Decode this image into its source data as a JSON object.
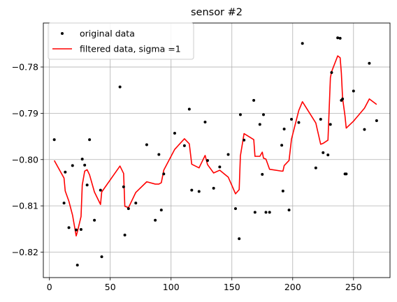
{
  "chart_data": {
    "type": "line",
    "title": "sensor #2",
    "xlabel": "",
    "ylabel": "",
    "xlim": [
      -5,
      280
    ],
    "ylim": [
      -0.8255,
      -0.7705
    ],
    "x_ticks": [
      0,
      50,
      100,
      150,
      200,
      250
    ],
    "y_ticks": [
      -0.82,
      -0.81,
      -0.8,
      -0.79,
      -0.78
    ],
    "x_tick_labels": [
      "0",
      "50",
      "100",
      "150",
      "200",
      "250"
    ],
    "y_tick_labels": [
      "−0.82",
      "−0.81",
      "−0.80",
      "−0.79",
      "−0.78"
    ],
    "grid": true,
    "legend_position": "top-left",
    "series": [
      {
        "name": "original data",
        "style": "markers",
        "color": "#000000",
        "x": [
          4,
          12,
          13,
          16,
          19,
          22,
          23,
          26,
          27,
          29,
          31,
          33,
          37,
          42,
          43,
          58,
          61,
          62,
          65,
          71,
          80,
          87,
          90,
          92,
          94,
          103,
          111,
          115,
          117,
          123,
          128,
          130,
          135,
          140,
          147,
          153,
          156,
          157,
          160,
          168,
          169,
          173,
          175,
          176,
          178,
          181,
          191,
          192,
          193,
          197,
          199,
          205,
          208,
          219,
          223,
          225,
          229,
          231,
          232,
          237,
          239,
          240,
          241,
          243,
          244,
          250,
          259,
          263,
          269
        ],
        "y": [
          -0.7957,
          -0.8094,
          -0.8027,
          -0.8147,
          -0.8013,
          -0.8152,
          -0.8228,
          -0.8151,
          -0.7999,
          -0.8012,
          -0.8055,
          -0.7957,
          -0.8131,
          -0.8066,
          -0.821,
          -0.7843,
          -0.8059,
          -0.8163,
          -0.8106,
          -0.8094,
          -0.7968,
          -0.8131,
          -0.7989,
          -0.8109,
          -0.8031,
          -0.7943,
          -0.797,
          -0.7891,
          -0.8066,
          -0.8069,
          -0.7919,
          -0.8002,
          -0.8062,
          -0.8016,
          -0.7989,
          -0.8106,
          -0.8171,
          -0.7903,
          -0.7958,
          -0.7872,
          -0.8114,
          -0.7924,
          -0.8032,
          -0.7903,
          -0.8114,
          -0.8114,
          -0.7969,
          -0.8068,
          -0.7934,
          -0.8109,
          -0.7913,
          -0.792,
          -0.7749,
          -0.8018,
          -0.7913,
          -0.7985,
          -0.799,
          -0.7924,
          -0.7812,
          -0.7737,
          -0.7738,
          -0.7872,
          -0.7869,
          -0.8031,
          -0.8031,
          -0.7852,
          -0.7935,
          -0.7792,
          -0.7916
        ]
      },
      {
        "name": "filtered data, sigma =1",
        "style": "line",
        "color": "#ff0000",
        "x": [
          4,
          12,
          13,
          16,
          19,
          22,
          23,
          26,
          27,
          29,
          31,
          33,
          37,
          42,
          43,
          58,
          61,
          62,
          65,
          71,
          80,
          87,
          90,
          92,
          94,
          103,
          111,
          115,
          117,
          123,
          128,
          130,
          135,
          140,
          147,
          153,
          156,
          157,
          160,
          168,
          169,
          173,
          175,
          176,
          178,
          181,
          191,
          192,
          193,
          197,
          199,
          205,
          208,
          219,
          223,
          225,
          229,
          231,
          232,
          237,
          239,
          240,
          241,
          243,
          244,
          250,
          259,
          263,
          269
        ],
        "y": [
          -0.8002,
          -0.804,
          -0.8068,
          -0.809,
          -0.812,
          -0.8165,
          -0.8156,
          -0.8123,
          -0.8055,
          -0.8025,
          -0.8022,
          -0.8033,
          -0.807,
          -0.8097,
          -0.807,
          -0.8014,
          -0.803,
          -0.8101,
          -0.8104,
          -0.8071,
          -0.8048,
          -0.8053,
          -0.8053,
          -0.805,
          -0.8023,
          -0.7978,
          -0.7955,
          -0.7966,
          -0.801,
          -0.8018,
          -0.7991,
          -0.8011,
          -0.8029,
          -0.8023,
          -0.8038,
          -0.8074,
          -0.8065,
          -0.7992,
          -0.7944,
          -0.7957,
          -0.7993,
          -0.7993,
          -0.7984,
          -0.7997,
          -0.7999,
          -0.8021,
          -0.8025,
          -0.8025,
          -0.8013,
          -0.8002,
          -0.7956,
          -0.7894,
          -0.7875,
          -0.7921,
          -0.7967,
          -0.7965,
          -0.7958,
          -0.7823,
          -0.781,
          -0.7776,
          -0.778,
          -0.7813,
          -0.7867,
          -0.7906,
          -0.7932,
          -0.7917,
          -0.7889,
          -0.7869,
          -0.7881
        ]
      }
    ]
  }
}
